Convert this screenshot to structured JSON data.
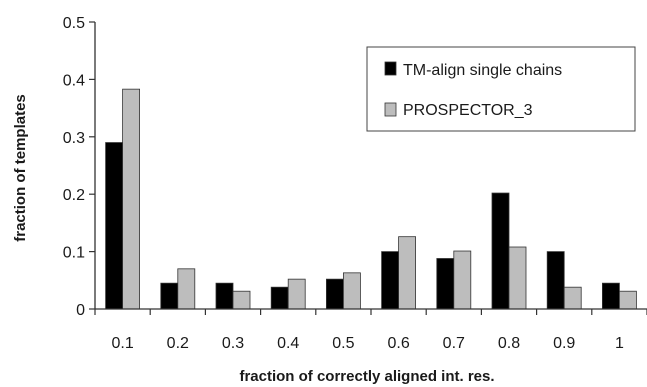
{
  "chart_data": {
    "type": "bar",
    "title": "",
    "xlabel": "fraction of correctly aligned int. res.",
    "ylabel": "fraction of templates",
    "categories": [
      "0.1",
      "0.2",
      "0.3",
      "0.4",
      "0.5",
      "0.6",
      "0.7",
      "0.8",
      "0.9",
      "1"
    ],
    "ylim": [
      0,
      0.5
    ],
    "yticks": [
      "0",
      "0.1",
      "0.2",
      "0.3",
      "0.4",
      "0.5"
    ],
    "grid": false,
    "legend": "top-right",
    "series": [
      {
        "name": "TM-align single chains",
        "color": "#000000",
        "values": [
          0.29,
          0.045,
          0.045,
          0.038,
          0.052,
          0.1,
          0.088,
          0.202,
          0.1,
          0.045
        ]
      },
      {
        "name": "PROSPECTOR_3",
        "color": "#bdbdbd",
        "values": [
          0.383,
          0.07,
          0.031,
          0.052,
          0.063,
          0.126,
          0.101,
          0.108,
          0.038,
          0.031
        ]
      }
    ]
  }
}
